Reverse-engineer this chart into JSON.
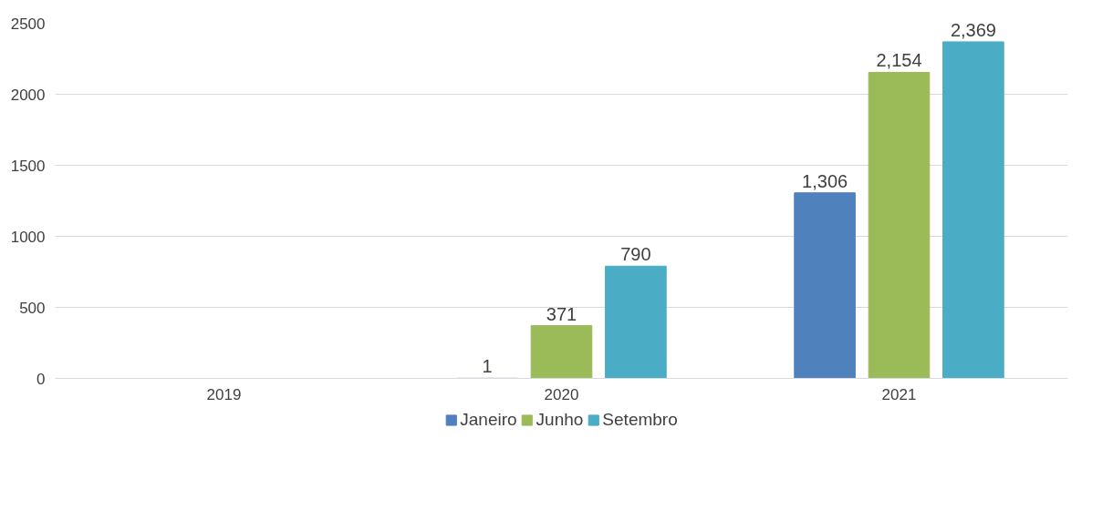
{
  "chart_data": {
    "type": "bar",
    "categories": [
      "2019",
      "2020",
      "2021"
    ],
    "series": [
      {
        "name": "Janeiro",
        "color": "#4f81bd",
        "values": [
          null,
          1,
          1306
        ],
        "value_labels": [
          null,
          "1",
          "1,306"
        ]
      },
      {
        "name": "Junho",
        "color": "#9bbb59",
        "values": [
          null,
          371,
          2154
        ],
        "value_labels": [
          null,
          "371",
          "2,154"
        ]
      },
      {
        "name": "Setembro",
        "color": "#4bacc6",
        "values": [
          null,
          790,
          2369
        ],
        "value_labels": [
          null,
          "790",
          "2,369"
        ]
      }
    ],
    "ylim": [
      0,
      2500
    ],
    "yticks": [
      0,
      500,
      1000,
      1500,
      2000,
      2500
    ],
    "grid": "y",
    "legend": "bottom"
  }
}
